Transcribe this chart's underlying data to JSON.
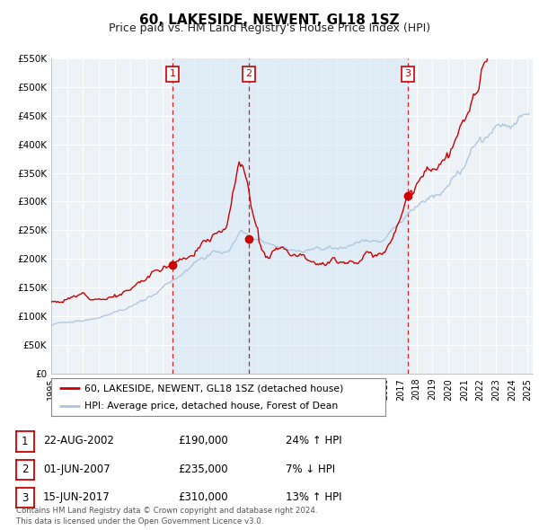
{
  "title": "60, LAKESIDE, NEWENT, GL18 1SZ",
  "subtitle": "Price paid vs. HM Land Registry's House Price Index (HPI)",
  "ylim": [
    0,
    550000
  ],
  "yticks": [
    0,
    50000,
    100000,
    150000,
    200000,
    250000,
    300000,
    350000,
    400000,
    450000,
    500000,
    550000
  ],
  "ytick_labels": [
    "£0",
    "£50K",
    "£100K",
    "£150K",
    "£200K",
    "£250K",
    "£300K",
    "£350K",
    "£400K",
    "£450K",
    "£500K",
    "£550K"
  ],
  "hpi_color": "#a8c4de",
  "price_color": "#cc0000",
  "bg_color": "#ffffff",
  "plot_bg_color": "#edf2f7",
  "grid_color": "#ffffff",
  "sale_bg_color": "#d6e8f5",
  "transactions": [
    {
      "num": 1,
      "date_label": "22-AUG-2002",
      "year": 2002.64,
      "price": 190000,
      "hpi_pct": "24%",
      "direction": "↑"
    },
    {
      "num": 2,
      "date_label": "01-JUN-2007",
      "year": 2007.42,
      "price": 235000,
      "hpi_pct": "7%",
      "direction": "↓"
    },
    {
      "num": 3,
      "date_label": "15-JUN-2017",
      "year": 2017.45,
      "price": 310000,
      "hpi_pct": "13%",
      "direction": "↑"
    }
  ],
  "legend_label_price": "60, LAKESIDE, NEWENT, GL18 1SZ (detached house)",
  "legend_label_hpi": "HPI: Average price, detached house, Forest of Dean",
  "footnote": "Contains HM Land Registry data © Crown copyright and database right 2024.\nThis data is licensed under the Open Government Licence v3.0.",
  "title_fontsize": 11,
  "subtitle_fontsize": 9,
  "xmin": 1995,
  "xmax": 2025.3
}
